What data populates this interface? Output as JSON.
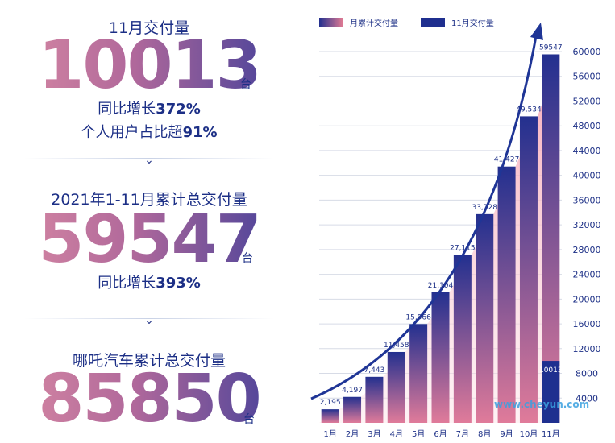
{
  "left": {
    "block1": {
      "label": "11月交付量",
      "number": "10013",
      "unit": "台",
      "line1_prefix": "同比增长",
      "line1_value": "372%",
      "line2_prefix": "个人用户占比超",
      "line2_value": "91%"
    },
    "block2": {
      "label": "2021年1-11月累计总交付量",
      "number": "59547",
      "unit": "台",
      "line1_prefix": "同比增长",
      "line1_value": "393%"
    },
    "block3": {
      "label": "哪吒汽车累计总交付量",
      "number": "85850",
      "unit": "台"
    },
    "chevron_icon": "chevron-down-icon"
  },
  "chart_data": {
    "type": "bar",
    "categories": [
      "1月",
      "2月",
      "3月",
      "4月",
      "5月",
      "6月",
      "7月",
      "8月",
      "9月",
      "10月",
      "11月"
    ],
    "series": [
      {
        "name": "月累计交付量",
        "values": [
          2195,
          4197,
          7443,
          11458,
          15966,
          21104,
          27115,
          33728,
          41427,
          49534,
          59547
        ],
        "labels": [
          "2,195",
          "4,197",
          "7,443",
          "11,458",
          "15,966",
          "21,104",
          "27,115",
          "33,728",
          "41,427",
          "49,534",
          "59547"
        ]
      },
      {
        "name": "11月交付量",
        "values": [
          null,
          null,
          null,
          null,
          null,
          null,
          null,
          null,
          null,
          null,
          10013
        ],
        "labels": [
          "",
          "",
          "",
          "",
          "",
          "",
          "",
          "",
          "",
          "",
          "10013"
        ]
      }
    ],
    "ylim": [
      0,
      60000
    ],
    "yticks": [
      4000,
      8000,
      12000,
      16000,
      20000,
      24000,
      28000,
      32000,
      36000,
      40000,
      44000,
      48000,
      52000,
      56000,
      60000
    ],
    "grid": true,
    "legend_position": "top-left",
    "colors": {
      "bar_top": "#23308f",
      "bar_bottom": "#e07b9a",
      "area_top": "#f5a0b0",
      "area_bottom": "#fde6ea",
      "arrow": "#1f3596",
      "grid": "#d7dbe6",
      "legend_cumulative": "#e57c93",
      "legend_monthly": "#1f2f8f"
    }
  },
  "watermark": "www.cheyun.com"
}
